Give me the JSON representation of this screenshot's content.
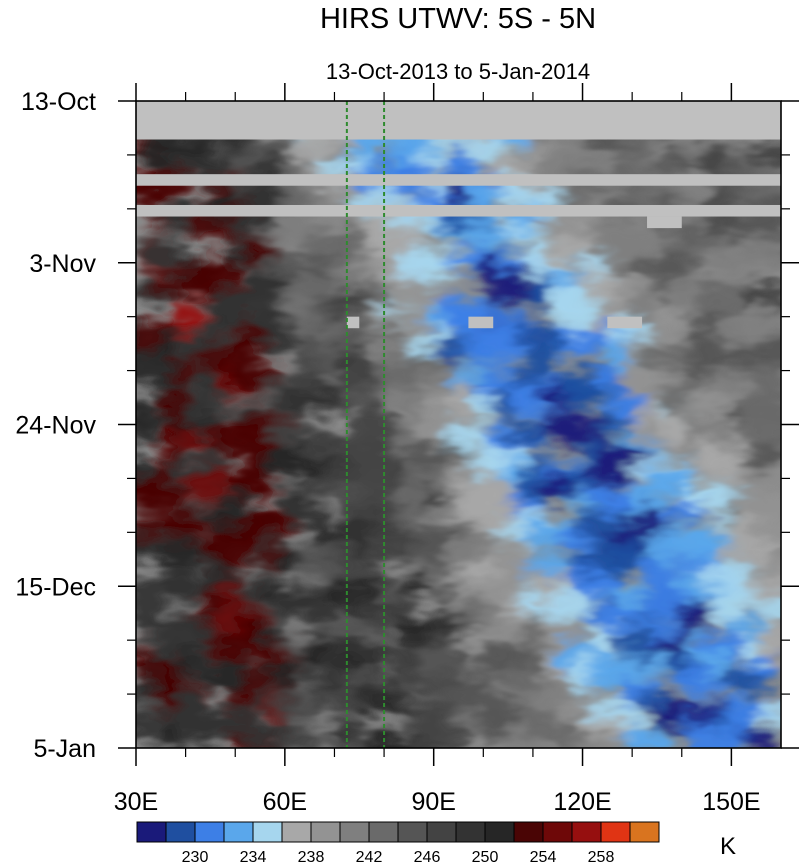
{
  "chart_data": {
    "type": "heatmap",
    "title": "HIRS UTWV: 5S - 5N",
    "subtitle": "13-Oct-2013 to 5-Jan-2014",
    "x_axis": {
      "range": [
        30,
        160
      ],
      "ticks": [
        30,
        60,
        90,
        120,
        150
      ],
      "tick_labels": [
        "30E",
        "60E",
        "90E",
        "120E",
        "150E"
      ]
    },
    "y_axis": {
      "range": [
        "2013-10-13",
        "2014-01-05"
      ],
      "reversed": true,
      "ticks": [
        "2013-10-13",
        "2013-11-03",
        "2013-11-24",
        "2013-12-15",
        "2014-01-05"
      ],
      "tick_labels": [
        "13-Oct",
        "3-Nov",
        "24-Nov",
        "15-Dec",
        "5-Jan"
      ]
    },
    "reference_lines_lon": [
      72.5,
      80
    ],
    "reference_line_color": "#2e8b2e",
    "missing_data_color": "#c0c0c0",
    "colorbar": {
      "unit_label": "K",
      "tick_labels": [
        "230",
        "234",
        "238",
        "242",
        "246",
        "250",
        "254",
        "258"
      ],
      "colors": [
        "#1a1a7a",
        "#1f4fa0",
        "#3d7fe6",
        "#5aa7eb",
        "#a6d6ee",
        "#a8a8a8",
        "#939393",
        "#7f7f7f",
        "#6a6a6a",
        "#555555",
        "#434343",
        "#333333",
        "#262626",
        "#4a0505",
        "#6e0808",
        "#960f0f",
        "#e03414",
        "#d9741f"
      ]
    }
  }
}
